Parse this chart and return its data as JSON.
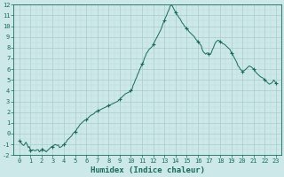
{
  "xlabel": "Humidex (Indice chaleur)",
  "xlim": [
    -0.5,
    23.5
  ],
  "ylim": [
    -2,
    12
  ],
  "yticks": [
    -2,
    -1,
    0,
    1,
    2,
    3,
    4,
    5,
    6,
    7,
    8,
    9,
    10,
    11,
    12
  ],
  "xticks": [
    0,
    1,
    2,
    3,
    4,
    5,
    6,
    7,
    8,
    9,
    10,
    11,
    12,
    13,
    14,
    15,
    16,
    17,
    18,
    19,
    20,
    21,
    22,
    23
  ],
  "bg_color": "#cce8e8",
  "grid_major_color": "#aacccc",
  "grid_minor_color": "#bbdddd",
  "line_color": "#1a6b5a",
  "marker_color": "#1a6b5a",
  "x": [
    0.0,
    0.1,
    0.2,
    0.3,
    0.4,
    0.5,
    0.6,
    0.7,
    0.8,
    0.9,
    1.0,
    1.1,
    1.2,
    1.3,
    1.4,
    1.5,
    1.6,
    1.7,
    1.8,
    1.9,
    2.0,
    2.1,
    2.2,
    2.3,
    2.4,
    2.5,
    2.6,
    2.7,
    2.8,
    2.9,
    3.0,
    3.1,
    3.2,
    3.3,
    3.4,
    3.5,
    3.6,
    3.7,
    3.8,
    3.9,
    4.0,
    4.1,
    4.2,
    4.3,
    4.4,
    4.5,
    4.6,
    4.7,
    4.8,
    4.9,
    5.0,
    5.1,
    5.2,
    5.3,
    5.4,
    5.5,
    5.6,
    5.7,
    5.8,
    5.9,
    6.0,
    6.1,
    6.2,
    6.3,
    6.4,
    6.5,
    6.6,
    6.7,
    6.8,
    6.9,
    7.0,
    7.1,
    7.2,
    7.3,
    7.4,
    7.5,
    7.6,
    7.7,
    7.8,
    7.9,
    8.0,
    8.1,
    8.2,
    8.3,
    8.4,
    8.5,
    8.6,
    8.7,
    8.8,
    8.9,
    9.0,
    9.1,
    9.2,
    9.3,
    9.4,
    9.5,
    9.6,
    9.7,
    9.8,
    9.9,
    10.0,
    10.1,
    10.2,
    10.3,
    10.4,
    10.5,
    10.6,
    10.7,
    10.8,
    10.9,
    11.0,
    11.1,
    11.2,
    11.3,
    11.4,
    11.5,
    11.6,
    11.7,
    11.8,
    11.9,
    12.0,
    12.1,
    12.2,
    12.3,
    12.4,
    12.5,
    12.6,
    12.7,
    12.8,
    12.9,
    13.0,
    13.1,
    13.2,
    13.3,
    13.4,
    13.5,
    13.6,
    13.7,
    13.8,
    13.9,
    14.0,
    14.1,
    14.2,
    14.3,
    14.4,
    14.5,
    14.6,
    14.7,
    14.8,
    14.9,
    15.0,
    15.1,
    15.2,
    15.3,
    15.4,
    15.5,
    15.6,
    15.7,
    15.8,
    15.9,
    16.0,
    16.1,
    16.2,
    16.3,
    16.4,
    16.5,
    16.6,
    16.7,
    16.8,
    16.9,
    17.0,
    17.1,
    17.2,
    17.3,
    17.4,
    17.5,
    17.6,
    17.7,
    17.8,
    17.9,
    18.0,
    18.1,
    18.2,
    18.3,
    18.4,
    18.5,
    18.6,
    18.7,
    18.8,
    18.9,
    19.0,
    19.1,
    19.2,
    19.3,
    19.4,
    19.5,
    19.6,
    19.7,
    19.8,
    19.9,
    20.0,
    20.1,
    20.2,
    20.3,
    20.4,
    20.5,
    20.6,
    20.7,
    20.8,
    20.9,
    21.0,
    21.1,
    21.2,
    21.3,
    21.4,
    21.5,
    21.6,
    21.7,
    21.8,
    21.9,
    22.0,
    22.1,
    22.2,
    22.3,
    22.4,
    22.5,
    22.6,
    22.7,
    22.8,
    22.9,
    23.0
  ],
  "y": [
    -0.7,
    -0.75,
    -0.9,
    -1.05,
    -1.1,
    -0.95,
    -0.8,
    -1.0,
    -1.3,
    -1.2,
    -1.6,
    -1.55,
    -1.5,
    -1.55,
    -1.6,
    -1.55,
    -1.5,
    -1.5,
    -1.7,
    -1.6,
    -1.5,
    -1.4,
    -1.6,
    -1.55,
    -1.7,
    -1.6,
    -1.5,
    -1.4,
    -1.3,
    -1.2,
    -1.2,
    -1.1,
    -1.0,
    -1.05,
    -1.1,
    -1.05,
    -1.3,
    -1.25,
    -1.2,
    -1.1,
    -1.0,
    -0.9,
    -0.8,
    -0.6,
    -0.5,
    -0.4,
    -0.3,
    -0.2,
    0.0,
    0.1,
    0.2,
    0.3,
    0.5,
    0.6,
    0.8,
    0.9,
    1.0,
    1.1,
    1.2,
    1.25,
    1.3,
    1.35,
    1.5,
    1.6,
    1.7,
    1.75,
    1.8,
    1.85,
    2.0,
    2.05,
    2.1,
    2.15,
    2.2,
    2.25,
    2.3,
    2.35,
    2.4,
    2.45,
    2.5,
    2.55,
    2.6,
    2.65,
    2.7,
    2.75,
    2.8,
    2.85,
    2.9,
    2.95,
    3.0,
    3.1,
    3.2,
    3.3,
    3.4,
    3.5,
    3.6,
    3.7,
    3.75,
    3.8,
    3.85,
    3.9,
    4.0,
    4.1,
    4.5,
    4.7,
    5.0,
    5.2,
    5.5,
    5.7,
    6.0,
    6.2,
    6.5,
    6.6,
    7.0,
    7.2,
    7.5,
    7.6,
    7.8,
    7.9,
    8.0,
    8.1,
    8.3,
    8.5,
    8.7,
    8.9,
    9.1,
    9.3,
    9.5,
    9.7,
    10.0,
    10.3,
    10.5,
    10.8,
    11.0,
    11.3,
    11.5,
    11.8,
    12.0,
    11.9,
    11.7,
    11.5,
    11.3,
    11.1,
    11.0,
    10.8,
    10.7,
    10.5,
    10.3,
    10.2,
    10.0,
    9.9,
    9.8,
    9.7,
    9.5,
    9.4,
    9.3,
    9.2,
    9.1,
    9.0,
    8.8,
    8.7,
    8.6,
    8.5,
    8.3,
    8.2,
    7.8,
    7.6,
    7.5,
    7.4,
    7.5,
    7.5,
    7.4,
    7.4,
    7.5,
    7.8,
    8.0,
    8.3,
    8.5,
    8.6,
    8.7,
    8.65,
    8.6,
    8.5,
    8.4,
    8.35,
    8.3,
    8.2,
    8.1,
    8.0,
    7.9,
    7.8,
    7.5,
    7.4,
    7.2,
    7.0,
    6.8,
    6.6,
    6.3,
    6.2,
    6.0,
    5.9,
    5.8,
    5.85,
    5.9,
    6.0,
    6.1,
    6.2,
    6.3,
    6.25,
    6.2,
    6.1,
    6.0,
    5.9,
    5.7,
    5.6,
    5.5,
    5.4,
    5.3,
    5.25,
    5.2,
    5.1,
    5.0,
    4.9,
    4.8,
    4.7,
    4.6,
    4.65,
    4.7,
    4.8,
    5.0,
    4.85,
    4.7
  ]
}
